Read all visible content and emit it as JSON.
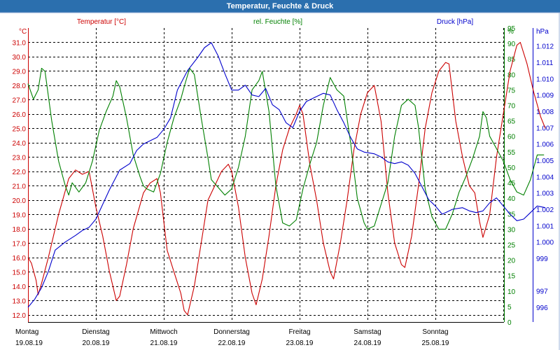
{
  "window": {
    "title": "Temperatur, Feuchte & Druck"
  },
  "colors": {
    "temperature": "#cc0000",
    "humidity": "#008000",
    "pressure": "#0000cc",
    "titlebar": "#2b6fae",
    "grid": "#000000"
  },
  "chart_data": {
    "type": "line",
    "grid": true,
    "x_days": [
      {
        "day": "Montag",
        "date": "19.08.19"
      },
      {
        "day": "Dienstag",
        "date": "20.08.19"
      },
      {
        "day": "Mittwoch",
        "date": "21.08.19"
      },
      {
        "day": "Donnerstag",
        "date": "22.08.19"
      },
      {
        "day": "Freitag",
        "date": "23.08.19"
      },
      {
        "day": "Samstag",
        "date": "24.08.19"
      },
      {
        "day": "Sonntag",
        "date": "25.08.19"
      }
    ],
    "axes": {
      "temperature": {
        "unit": "°C",
        "ylim": [
          11.5,
          32.0
        ],
        "ticks": [
          "12.0",
          "13.0",
          "14.0",
          "15.0",
          "16.0",
          "17.0",
          "18.0",
          "19.0",
          "20.0",
          "21.0",
          "22.0",
          "23.0",
          "24.0",
          "25.0",
          "26.0",
          "27.0",
          "28.0",
          "29.0",
          "30.0",
          "31.0"
        ]
      },
      "humidity": {
        "unit": "%",
        "ylim": [
          0,
          95
        ],
        "ticks": [
          "0",
          "5",
          "10",
          "15",
          "20",
          "25",
          "30",
          "35",
          "40",
          "45",
          "50",
          "55",
          "60",
          "65",
          "70",
          "75",
          "80",
          "85",
          "90",
          "95"
        ]
      },
      "pressure": {
        "unit": "hPa",
        "ylim": [
          995.1,
          1013.1
        ],
        "ticks": [
          "996",
          "997",
          "999",
          "1.000",
          "1.001",
          "1.002",
          "1.003",
          "1.004",
          "1.005",
          "1.006",
          "1.007",
          "1.008",
          "1.009",
          "1.010",
          "1.011",
          "1.012"
        ]
      }
    },
    "series": [
      {
        "name": "Temperatur [°C]",
        "axis": "temperature",
        "points": [
          [
            0,
            16.0
          ],
          [
            0.05,
            15.6
          ],
          [
            0.12,
            14.4
          ],
          [
            0.15,
            13.4
          ],
          [
            0.2,
            14.2
          ],
          [
            0.3,
            16.0
          ],
          [
            0.45,
            19.0
          ],
          [
            0.6,
            21.5
          ],
          [
            0.7,
            22.1
          ],
          [
            0.8,
            21.8
          ],
          [
            0.9,
            22.0
          ],
          [
            1.0,
            19.5
          ],
          [
            1.1,
            17.5
          ],
          [
            1.2,
            15.0
          ],
          [
            1.3,
            13.0
          ],
          [
            1.35,
            13.3
          ],
          [
            1.45,
            15.5
          ],
          [
            1.55,
            18.0
          ],
          [
            1.7,
            20.5
          ],
          [
            1.8,
            21.2
          ],
          [
            1.9,
            21.5
          ],
          [
            1.95,
            20.5
          ],
          [
            2.0,
            18.5
          ],
          [
            2.05,
            16.5
          ],
          [
            2.15,
            15.0
          ],
          [
            2.25,
            13.5
          ],
          [
            2.3,
            12.3
          ],
          [
            2.35,
            12.0
          ],
          [
            2.45,
            14.0
          ],
          [
            2.55,
            17.0
          ],
          [
            2.65,
            20.0
          ],
          [
            2.75,
            21.0
          ],
          [
            2.85,
            22.0
          ],
          [
            2.95,
            22.5
          ],
          [
            3.0,
            22.0
          ],
          [
            3.1,
            19.5
          ],
          [
            3.2,
            16.0
          ],
          [
            3.3,
            13.5
          ],
          [
            3.36,
            12.7
          ],
          [
            3.45,
            14.5
          ],
          [
            3.55,
            17.5
          ],
          [
            3.65,
            21.0
          ],
          [
            3.75,
            23.5
          ],
          [
            3.85,
            25.0
          ],
          [
            3.95,
            26.0
          ],
          [
            4.0,
            26.6
          ],
          [
            4.05,
            26.0
          ],
          [
            4.15,
            22.5
          ],
          [
            4.25,
            20.0
          ],
          [
            4.35,
            17.0
          ],
          [
            4.45,
            15.0
          ],
          [
            4.5,
            14.5
          ],
          [
            4.6,
            17.0
          ],
          [
            4.7,
            20.0
          ],
          [
            4.8,
            23.5
          ],
          [
            4.9,
            26.0
          ],
          [
            5.0,
            27.5
          ],
          [
            5.1,
            28.0
          ],
          [
            5.2,
            25.5
          ],
          [
            5.3,
            20.5
          ],
          [
            5.4,
            17.0
          ],
          [
            5.5,
            15.5
          ],
          [
            5.55,
            15.3
          ],
          [
            5.65,
            17.5
          ],
          [
            5.75,
            21.0
          ],
          [
            5.85,
            25.0
          ],
          [
            5.95,
            27.5
          ],
          [
            6.05,
            29.0
          ],
          [
            6.15,
            29.6
          ],
          [
            6.2,
            29.5
          ],
          [
            6.3,
            25.5
          ],
          [
            6.4,
            23.0
          ],
          [
            6.5,
            21.0
          ],
          [
            6.58,
            20.5
          ],
          [
            6.65,
            18.5
          ],
          [
            6.7,
            17.4
          ],
          [
            6.8,
            19.0
          ],
          [
            6.9,
            23.0
          ],
          [
            7.0,
            26.0
          ],
          [
            7.1,
            29.0
          ],
          [
            7.2,
            30.8
          ],
          [
            7.25,
            31.0
          ],
          [
            7.35,
            29.5
          ],
          [
            7.45,
            27.5
          ],
          [
            7.55,
            25.8
          ],
          [
            7.62,
            25.0
          ]
        ]
      },
      {
        "name": "rel. Feuchte [%]",
        "axis": "humidity",
        "points": [
          [
            0,
            77
          ],
          [
            0.08,
            72
          ],
          [
            0.15,
            75
          ],
          [
            0.2,
            82
          ],
          [
            0.25,
            81
          ],
          [
            0.35,
            65
          ],
          [
            0.45,
            52
          ],
          [
            0.55,
            44
          ],
          [
            0.6,
            41
          ],
          [
            0.65,
            45
          ],
          [
            0.75,
            42
          ],
          [
            0.85,
            45
          ],
          [
            0.95,
            52
          ],
          [
            1.05,
            62
          ],
          [
            1.15,
            68
          ],
          [
            1.25,
            73
          ],
          [
            1.3,
            78
          ],
          [
            1.35,
            76
          ],
          [
            1.45,
            66
          ],
          [
            1.55,
            54
          ],
          [
            1.65,
            47
          ],
          [
            1.7,
            44
          ],
          [
            1.75,
            43
          ],
          [
            1.85,
            42
          ],
          [
            1.95,
            48
          ],
          [
            2.05,
            58
          ],
          [
            2.15,
            66
          ],
          [
            2.25,
            72
          ],
          [
            2.3,
            76
          ],
          [
            2.38,
            82
          ],
          [
            2.45,
            80
          ],
          [
            2.55,
            66
          ],
          [
            2.65,
            53
          ],
          [
            2.7,
            46
          ],
          [
            2.78,
            44
          ],
          [
            2.9,
            41
          ],
          [
            3.0,
            43
          ],
          [
            3.1,
            50
          ],
          [
            3.2,
            60
          ],
          [
            3.3,
            75
          ],
          [
            3.4,
            78
          ],
          [
            3.45,
            81
          ],
          [
            3.55,
            68
          ],
          [
            3.65,
            44
          ],
          [
            3.75,
            32
          ],
          [
            3.85,
            31
          ],
          [
            3.95,
            33
          ],
          [
            4.05,
            43
          ],
          [
            4.15,
            51
          ],
          [
            4.25,
            58
          ],
          [
            4.35,
            70
          ],
          [
            4.45,
            79
          ],
          [
            4.55,
            75
          ],
          [
            4.65,
            73
          ],
          [
            4.75,
            58
          ],
          [
            4.85,
            40
          ],
          [
            4.95,
            32
          ],
          [
            5.0,
            30
          ],
          [
            5.1,
            31
          ],
          [
            5.2,
            38
          ],
          [
            5.3,
            45
          ],
          [
            5.4,
            60
          ],
          [
            5.5,
            70
          ],
          [
            5.6,
            72
          ],
          [
            5.7,
            70
          ],
          [
            5.75,
            63
          ],
          [
            5.85,
            43
          ],
          [
            5.95,
            34
          ],
          [
            6.05,
            30
          ],
          [
            6.15,
            30
          ],
          [
            6.25,
            35
          ],
          [
            6.35,
            42
          ],
          [
            6.45,
            47
          ],
          [
            6.55,
            53
          ],
          [
            6.65,
            60
          ],
          [
            6.7,
            68
          ],
          [
            6.75,
            66
          ],
          [
            6.8,
            60
          ],
          [
            6.9,
            56
          ],
          [
            7.0,
            52
          ],
          [
            7.1,
            46
          ],
          [
            7.2,
            42
          ],
          [
            7.3,
            41
          ],
          [
            7.4,
            46
          ],
          [
            7.5,
            54
          ],
          [
            7.6,
            54
          ]
        ]
      },
      {
        "name": "Druck [hPa]",
        "axis": "pressure",
        "points": [
          [
            0,
            996.0
          ],
          [
            0.1,
            996.5
          ],
          [
            0.2,
            997.2
          ],
          [
            0.3,
            998.2
          ],
          [
            0.4,
            999.5
          ],
          [
            0.55,
            1000.0
          ],
          [
            0.7,
            1000.4
          ],
          [
            0.8,
            1000.7
          ],
          [
            0.9,
            1000.9
          ],
          [
            1.0,
            1001.4
          ],
          [
            1.1,
            1002.3
          ],
          [
            1.2,
            1003.2
          ],
          [
            1.35,
            1004.4
          ],
          [
            1.5,
            1004.8
          ],
          [
            1.6,
            1005.6
          ],
          [
            1.7,
            1006.0
          ],
          [
            1.8,
            1006.2
          ],
          [
            1.9,
            1006.4
          ],
          [
            2.0,
            1006.9
          ],
          [
            2.1,
            1007.6
          ],
          [
            2.2,
            1009.3
          ],
          [
            2.35,
            1010.5
          ],
          [
            2.5,
            1011.3
          ],
          [
            2.6,
            1011.9
          ],
          [
            2.7,
            1012.2
          ],
          [
            2.8,
            1011.4
          ],
          [
            2.9,
            1010.3
          ],
          [
            3.0,
            1009.3
          ],
          [
            3.1,
            1009.3
          ],
          [
            3.2,
            1009.6
          ],
          [
            3.3,
            1009.0
          ],
          [
            3.4,
            1008.9
          ],
          [
            3.5,
            1009.4
          ],
          [
            3.6,
            1008.4
          ],
          [
            3.7,
            1008.1
          ],
          [
            3.8,
            1007.3
          ],
          [
            3.9,
            1007.0
          ],
          [
            4.0,
            1008.0
          ],
          [
            4.1,
            1008.6
          ],
          [
            4.2,
            1008.8
          ],
          [
            4.35,
            1009.1
          ],
          [
            4.45,
            1009.0
          ],
          [
            4.55,
            1008.1
          ],
          [
            4.65,
            1007.3
          ],
          [
            4.75,
            1006.4
          ],
          [
            4.85,
            1005.7
          ],
          [
            4.95,
            1005.5
          ],
          [
            5.1,
            1005.4
          ],
          [
            5.2,
            1005.2
          ],
          [
            5.3,
            1004.9
          ],
          [
            5.4,
            1004.8
          ],
          [
            5.5,
            1004.9
          ],
          [
            5.6,
            1004.7
          ],
          [
            5.7,
            1004.2
          ],
          [
            5.8,
            1003.4
          ],
          [
            5.9,
            1002.6
          ],
          [
            6.0,
            1002.2
          ],
          [
            6.1,
            1001.7
          ],
          [
            6.15,
            1001.8
          ],
          [
            6.25,
            1002.0
          ],
          [
            6.4,
            1002.1
          ],
          [
            6.5,
            1001.9
          ],
          [
            6.6,
            1001.8
          ],
          [
            6.7,
            1001.9
          ],
          [
            6.8,
            1002.4
          ],
          [
            6.9,
            1002.7
          ],
          [
            7.0,
            1002.2
          ],
          [
            7.1,
            1001.7
          ],
          [
            7.2,
            1001.3
          ],
          [
            7.3,
            1001.4
          ],
          [
            7.4,
            1001.8
          ],
          [
            7.5,
            1002.2
          ],
          [
            7.62,
            1002.1
          ]
        ]
      }
    ]
  }
}
